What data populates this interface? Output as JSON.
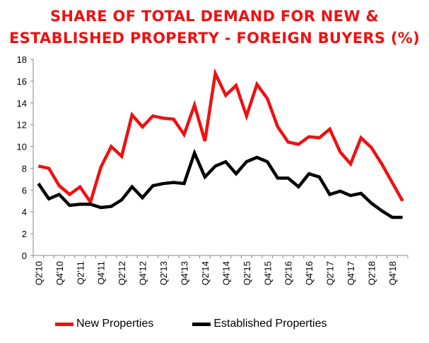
{
  "chart_data": {
    "type": "line",
    "title_lines": [
      "SHARE OF TOTAL DEMAND FOR NEW &",
      "ESTABLISHED PROPERTY - FOREIGN BUYERS (%)"
    ],
    "ylim": [
      0,
      18
    ],
    "yticks": [
      0,
      2,
      4,
      6,
      8,
      10,
      12,
      14,
      16,
      18
    ],
    "x": [
      "Q2'10",
      "Q3'10",
      "Q4'10",
      "Q1'11",
      "Q2'11",
      "Q3'11",
      "Q4'11",
      "Q1'12",
      "Q2'12",
      "Q3'12",
      "Q4'12",
      "Q1'13",
      "Q2'13",
      "Q3'13",
      "Q4'13",
      "Q1'14",
      "Q2'14",
      "Q3'14",
      "Q4'14",
      "Q1'15",
      "Q2'15",
      "Q3'15",
      "Q4'15",
      "Q1'16",
      "Q2'16",
      "Q3'16",
      "Q4'16",
      "Q1'17",
      "Q2'17",
      "Q3'17",
      "Q4'17",
      "Q1'18",
      "Q2'18",
      "Q3'18",
      "Q4'18",
      "Q1'19"
    ],
    "xtick_labels": [
      "Q2'10",
      "Q4'10",
      "Q2'11",
      "Q4'11",
      "Q2'12",
      "Q4'12",
      "Q2'13",
      "Q4'13",
      "Q2'14",
      "Q4'14",
      "Q2'15",
      "Q4'15",
      "Q2'16",
      "Q4'16",
      "Q2'17",
      "Q4'17",
      "Q2'18",
      "Q4'18"
    ],
    "series": [
      {
        "name": "New Properties",
        "color": "#ee1111",
        "values": [
          8.2,
          8.0,
          6.4,
          5.6,
          6.3,
          4.9,
          8.1,
          10.0,
          9.1,
          12.9,
          11.8,
          12.8,
          12.6,
          12.5,
          11.1,
          13.8,
          10.5,
          16.7,
          14.7,
          15.6,
          12.8,
          15.7,
          14.4,
          11.8,
          10.4,
          10.2,
          10.9,
          10.8,
          11.6,
          9.5,
          8.4,
          10.8,
          9.9,
          8.4,
          6.7,
          5.0
        ]
      },
      {
        "name": "Established Properties",
        "color": "#000000",
        "values": [
          6.6,
          5.2,
          5.6,
          4.6,
          4.7,
          4.7,
          4.4,
          4.5,
          5.1,
          6.3,
          5.3,
          6.4,
          6.6,
          6.7,
          6.6,
          9.4,
          7.2,
          8.2,
          8.6,
          7.5,
          8.6,
          9.0,
          8.6,
          7.1,
          7.1,
          6.3,
          7.5,
          7.2,
          5.6,
          5.9,
          5.5,
          5.7,
          4.8,
          4.1,
          3.5,
          3.5
        ]
      }
    ],
    "legend_position": "bottom",
    "grid": false
  }
}
